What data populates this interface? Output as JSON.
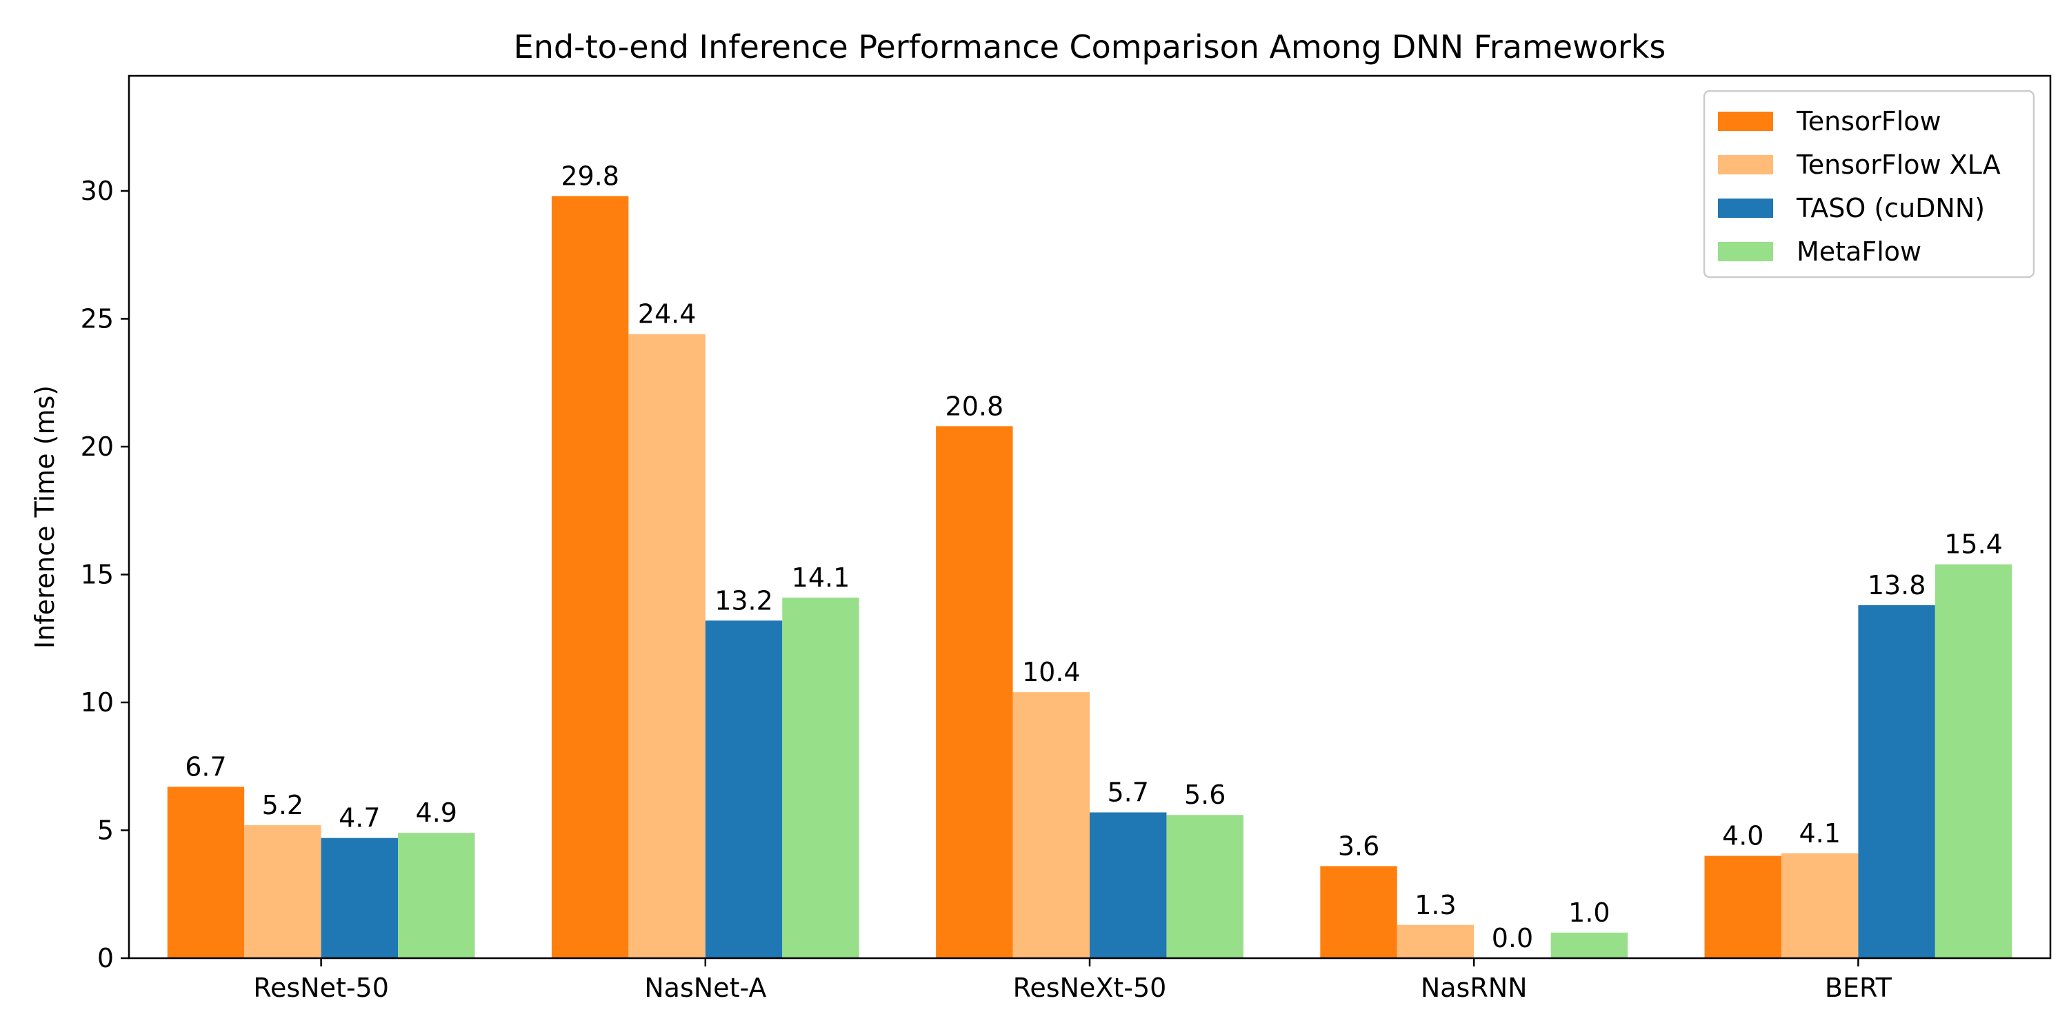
{
  "chart_data": {
    "type": "bar",
    "title": "End-to-end Inference Performance Comparison Among DNN Frameworks",
    "xlabel": "",
    "ylabel": "Inference Time (ms)",
    "ylim": [
      0,
      34.5
    ],
    "yticks": [
      0,
      5,
      10,
      15,
      20,
      25,
      30
    ],
    "grid": false,
    "legend_position": "top-right",
    "categories": [
      "ResNet-50",
      "NasNet-A",
      "ResNeXt-50",
      "NasRNN",
      "BERT"
    ],
    "series": [
      {
        "name": "TensorFlow",
        "color": "#ff7f0e",
        "values": [
          6.7,
          29.8,
          20.8,
          3.6,
          4.0
        ]
      },
      {
        "name": "TensorFlow XLA",
        "color": "#ffbb78",
        "values": [
          5.2,
          24.4,
          10.4,
          1.3,
          4.1
        ]
      },
      {
        "name": "TASO (cuDNN)",
        "color": "#1f77b4",
        "values": [
          4.7,
          13.2,
          5.7,
          0.0,
          13.8
        ]
      },
      {
        "name": "MetaFlow",
        "color": "#98df8a",
        "values": [
          4.9,
          14.1,
          5.6,
          1.0,
          15.4
        ]
      }
    ]
  }
}
